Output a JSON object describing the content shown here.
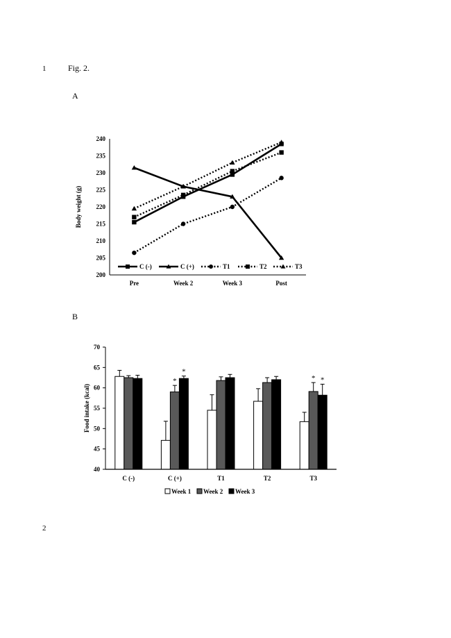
{
  "page": {
    "line_numbers": [
      "1",
      "2"
    ],
    "figure_title": "Fig. 2.",
    "panel_labels": [
      "A",
      "B"
    ]
  },
  "chart_data": [
    {
      "type": "line",
      "panel": "A",
      "title": "",
      "xlabel": "",
      "ylabel": "Body weight (g)",
      "categories": [
        "Pre",
        "Week 2",
        "Week 3",
        "Post"
      ],
      "ylim": [
        200,
        240
      ],
      "yticks": [
        200,
        205,
        210,
        215,
        220,
        225,
        230,
        235,
        240
      ],
      "grid": false,
      "legend_position": "bottom-inside",
      "series": [
        {
          "name": "C (-)",
          "marker": "square",
          "style": "solid",
          "values": [
            215.5,
            223,
            229.5,
            238.5
          ]
        },
        {
          "name": "C (+)",
          "marker": "triangle",
          "style": "solid",
          "values": [
            231.5,
            226,
            223,
            205
          ]
        },
        {
          "name": "T1",
          "marker": "circle",
          "style": "dotted",
          "values": [
            206.5,
            215,
            220,
            228.5
          ]
        },
        {
          "name": "T2",
          "marker": "square",
          "style": "dotted",
          "values": [
            217,
            223.5,
            230.5,
            236
          ]
        },
        {
          "name": "T3",
          "marker": "triangle",
          "style": "dotted",
          "values": [
            219.5,
            226,
            233,
            239
          ]
        }
      ]
    },
    {
      "type": "bar",
      "panel": "B",
      "title": "",
      "xlabel": "",
      "ylabel": "Food intake (kcal)",
      "categories": [
        "C (-)",
        "C (+)",
        "T1",
        "T2",
        "T3"
      ],
      "ylim": [
        40,
        70
      ],
      "yticks": [
        40,
        45,
        50,
        55,
        60,
        65,
        70
      ],
      "grid": false,
      "legend_position": "bottom",
      "series": [
        {
          "name": "Week 1",
          "color": "#ffffff",
          "values": [
            62.8,
            47.1,
            54.5,
            56.7,
            51.7
          ],
          "errors": [
            1.5,
            4.7,
            3.8,
            3.1,
            2.3
          ]
        },
        {
          "name": "Week 2",
          "color": "#595959",
          "values": [
            62.5,
            59.0,
            61.8,
            61.3,
            59.1
          ],
          "errors": [
            0.5,
            1.6,
            0.9,
            1.2,
            2.2
          ]
        },
        {
          "name": "Week 3",
          "color": "#000000",
          "values": [
            62.3,
            62.3,
            62.5,
            62.0,
            58.2
          ],
          "errors": [
            0.8,
            0.6,
            0.8,
            0.8,
            2.7
          ]
        }
      ],
      "annotations": [
        {
          "text": "*",
          "category": "C (+)",
          "series": "Week 2"
        },
        {
          "text": "*",
          "category": "C (+)",
          "series": "Week 3"
        },
        {
          "text": "*",
          "category": "T3",
          "series": "Week 2"
        },
        {
          "text": "*",
          "category": "T3",
          "series": "Week 3"
        }
      ]
    }
  ]
}
